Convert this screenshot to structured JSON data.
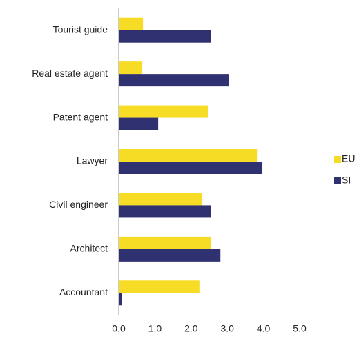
{
  "chart_data": {
    "type": "hbar",
    "categories": [
      "Tourist guide",
      "Real estate agent",
      "Patent agent",
      "Lawyer",
      "Civil engineer",
      "Architect",
      "Accountant"
    ],
    "series": [
      {
        "name": "EU",
        "color": "#f7dc25",
        "values": [
          0.67,
          0.65,
          2.48,
          3.82,
          2.31,
          2.54,
          2.23
        ]
      },
      {
        "name": "SI",
        "color": "#2f3170",
        "values": [
          2.54,
          3.05,
          1.09,
          3.97,
          2.54,
          2.81,
          0.08
        ]
      }
    ],
    "xlim": [
      0,
      5
    ],
    "xticks": [
      {
        "value": 0,
        "label": "0.0"
      },
      {
        "value": 1,
        "label": "1.0"
      },
      {
        "value": 2,
        "label": "2.0"
      },
      {
        "value": 3,
        "label": "3.0"
      },
      {
        "value": 4,
        "label": "4.0"
      },
      {
        "value": 5,
        "label": "5.0"
      }
    ],
    "legend": "right"
  }
}
